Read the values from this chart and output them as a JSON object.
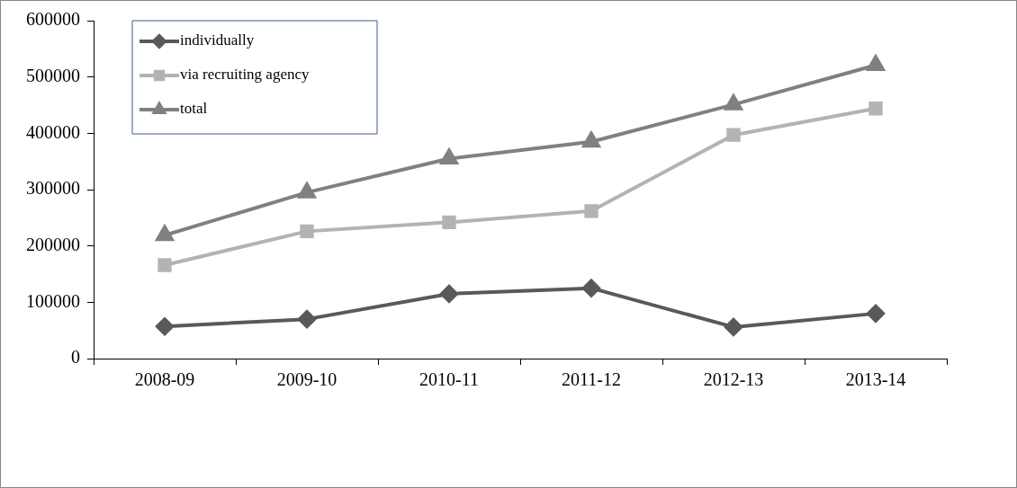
{
  "chart_data": {
    "type": "line",
    "categories": [
      "2008-09",
      "2009-10",
      "2010-11",
      "2011-12",
      "2012-13",
      "2013-14"
    ],
    "series": [
      {
        "name": "individually",
        "color": "#595959",
        "marker": "diamond",
        "values": [
          57000,
          70000,
          115000,
          125000,
          56000,
          80000
        ]
      },
      {
        "name": "via recruiting agency",
        "color": "#b3b3b3",
        "marker": "square",
        "values": [
          166000,
          226000,
          242000,
          262000,
          397000,
          444000
        ]
      },
      {
        "name": "total",
        "color": "#808080",
        "marker": "triangle",
        "values": [
          219000,
          295000,
          355000,
          385000,
          451000,
          521000
        ]
      }
    ],
    "ylim": [
      0,
      600000
    ],
    "yticks": [
      0,
      100000,
      200000,
      300000,
      400000,
      500000,
      600000
    ],
    "grid": false,
    "legend": "top left",
    "line_style": "solid"
  }
}
